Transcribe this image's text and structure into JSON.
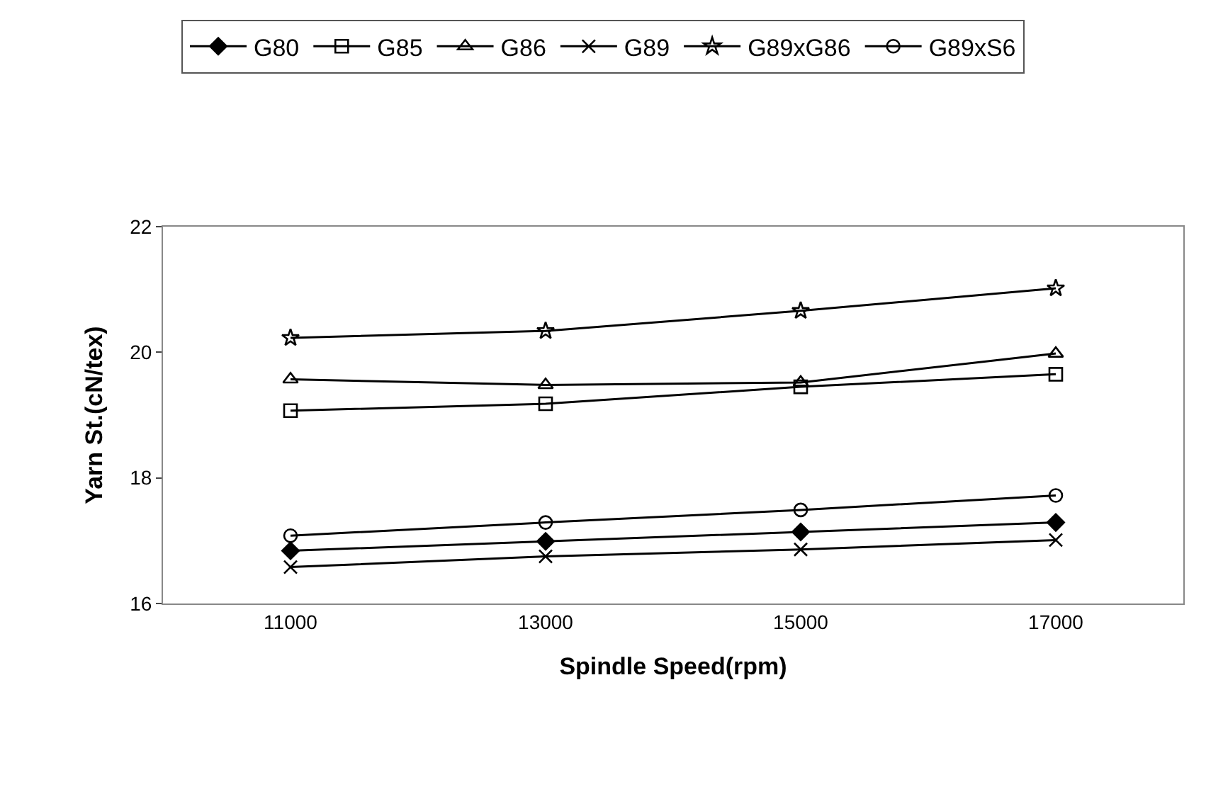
{
  "chart_data": {
    "type": "line",
    "xlabel": "Spindle Speed(rpm)",
    "ylabel": "Yarn St.(cN/tex)",
    "categories": [
      "11000",
      "13000",
      "15000",
      "17000"
    ],
    "ylim": [
      16,
      22
    ],
    "yticks": [
      16,
      18,
      20,
      22
    ],
    "grid": false,
    "legend": "top",
    "series": [
      {
        "name": "G80",
        "color": "#000000",
        "marker": "diamond",
        "values": [
          16.84,
          16.99,
          17.14,
          17.29
        ]
      },
      {
        "name": "G85",
        "color": "#000000",
        "marker": "square",
        "values": [
          19.07,
          19.18,
          19.45,
          19.65
        ]
      },
      {
        "name": "G86",
        "color": "#000000",
        "marker": "triangle",
        "values": [
          19.57,
          19.48,
          19.52,
          19.98
        ]
      },
      {
        "name": "G89",
        "color": "#000000",
        "marker": "cross",
        "values": [
          16.58,
          16.75,
          16.86,
          17.01
        ]
      },
      {
        "name": "G89xG86",
        "color": "#000000",
        "marker": "star",
        "values": [
          20.23,
          20.34,
          20.66,
          21.02
        ]
      },
      {
        "name": "G89xS6",
        "color": "#000000",
        "marker": "circle",
        "values": [
          17.08,
          17.29,
          17.49,
          17.72
        ]
      }
    ]
  }
}
